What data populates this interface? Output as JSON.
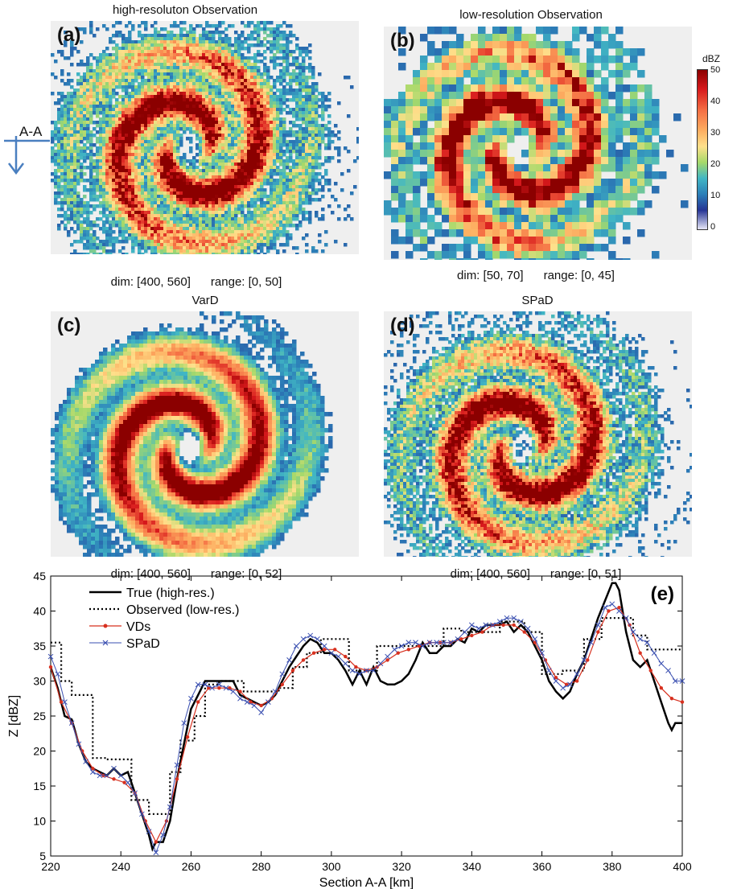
{
  "panels": [
    {
      "letter": "(a)",
      "title": "high-resoluton Observation",
      "dim": "dim: [400, 560]",
      "range": "range: [0, 50]"
    },
    {
      "letter": "(b)",
      "title": "low-resolution Observation",
      "dim": "dim: [50, 70]",
      "range": "range: [0, 45]"
    },
    {
      "letter": "(c)",
      "title": "VarD",
      "dim": "dim: [400, 560]",
      "range": "range: [0, 52]"
    },
    {
      "letter": "(d)",
      "title": "SPaD",
      "dim": "dim: [400, 560]",
      "range": "range: [0, 51]"
    }
  ],
  "section_marker": "A-A",
  "colorbar": {
    "unit": "dBZ",
    "ticks": [
      "50",
      "40",
      "30",
      "20",
      "10",
      "0"
    ]
  },
  "colors": {
    "true": "#000000",
    "observed": "#000000",
    "vds": "#d7301f",
    "spad": "#3a4fb0"
  },
  "chart_data": {
    "type": "line",
    "letter": "(e)",
    "xlabel": "Section A-A [km]",
    "ylabel": "Z [dBZ]",
    "xlim": [
      220,
      400
    ],
    "ylim": [
      5,
      45
    ],
    "xticks": [
      220,
      240,
      260,
      280,
      300,
      320,
      340,
      360,
      380,
      400
    ],
    "yticks": [
      5,
      10,
      15,
      20,
      25,
      30,
      35,
      40,
      45
    ],
    "legend_position": "top-left",
    "series": [
      {
        "name": "True (high-res.)",
        "style": "solid",
        "x": [
          220,
          222,
          224,
          226,
          228,
          230,
          232,
          234,
          236,
          238,
          240,
          242,
          244,
          246,
          248,
          249,
          250,
          252,
          254,
          256,
          258,
          260,
          262,
          264,
          266,
          268,
          270,
          272,
          274,
          276,
          278,
          280,
          282,
          284,
          286,
          288,
          290,
          292,
          294,
          296,
          298,
          300,
          302,
          304,
          306,
          308,
          310,
          312,
          314,
          316,
          318,
          320,
          322,
          324,
          326,
          328,
          330,
          332,
          334,
          336,
          338,
          340,
          342,
          344,
          346,
          348,
          350,
          352,
          354,
          356,
          358,
          360,
          362,
          364,
          366,
          368,
          370,
          372,
          374,
          376,
          378,
          380,
          381,
          382,
          384,
          386,
          388,
          390,
          392,
          394,
          396,
          397,
          398,
          400
        ],
        "y": [
          32,
          29,
          25,
          24.5,
          21,
          18.5,
          17.5,
          17,
          16.5,
          17.5,
          16.5,
          17,
          14,
          11,
          8,
          6,
          7,
          7,
          10,
          16,
          21,
          26,
          28,
          30,
          30,
          30,
          30,
          30,
          28,
          27.5,
          27,
          26.5,
          27,
          28,
          30,
          32,
          33.5,
          35,
          36,
          35.5,
          34,
          34,
          33,
          31.5,
          29.5,
          31.5,
          29.5,
          32,
          30,
          29.5,
          29.5,
          30,
          31,
          33,
          35.5,
          34,
          34,
          35,
          35,
          36,
          35.5,
          37.5,
          37,
          38,
          38,
          38,
          38.5,
          37,
          38,
          37,
          35,
          33,
          30,
          28.5,
          27.5,
          28.5,
          31,
          33,
          36,
          39,
          41.5,
          44,
          44,
          43,
          37,
          33,
          32,
          33,
          30,
          27,
          24,
          23,
          24,
          24
        ]
      },
      {
        "name": "Observed (low-res.)",
        "style": "dotted",
        "x": [
          220,
          223,
          223,
          226,
          226,
          232,
          232,
          236,
          236,
          243,
          243,
          248,
          248,
          254,
          254,
          257,
          257,
          261,
          261,
          264,
          264,
          268,
          268,
          275,
          275,
          285,
          285,
          289,
          289,
          293,
          293,
          297,
          297,
          305,
          305,
          313,
          313,
          325,
          325,
          332,
          332,
          337,
          337,
          348,
          348,
          355,
          355,
          360,
          360,
          366,
          366,
          372,
          372,
          377,
          377,
          386,
          386,
          390,
          390,
          400
        ],
        "y": [
          35.5,
          35.5,
          30,
          30,
          28,
          28,
          19,
          19,
          18.8,
          18.8,
          13,
          13,
          11,
          11,
          17,
          17,
          21.5,
          21.5,
          25,
          25,
          29.5,
          29.5,
          30,
          30,
          28.5,
          28.5,
          29,
          29,
          32,
          32,
          34,
          34,
          36,
          36,
          31.5,
          31.5,
          35,
          35,
          35,
          35,
          37.5,
          37.5,
          37,
          37,
          38.5,
          38.5,
          37,
          37,
          31,
          31,
          31.5,
          31.5,
          36,
          36,
          39,
          39,
          36.5,
          36.5,
          34.5,
          34.5
        ]
      },
      {
        "name": "VDs",
        "style": "dots",
        "x": [
          220,
          223,
          226,
          229,
          232,
          235,
          238,
          241,
          244,
          247,
          250,
          253,
          256,
          259,
          262,
          265,
          268,
          271,
          274,
          277,
          280,
          283,
          286,
          289,
          292,
          295,
          298,
          301,
          304,
          307,
          310,
          313,
          316,
          319,
          322,
          325,
          328,
          331,
          334,
          337,
          340,
          343,
          346,
          349,
          352,
          355,
          358,
          361,
          364,
          367,
          370,
          373,
          376,
          379,
          382,
          385,
          388,
          391,
          394,
          397,
          400
        ],
        "y": [
          32,
          27,
          24,
          20,
          17.5,
          16.5,
          16,
          15.5,
          14,
          10,
          7,
          10,
          16,
          22,
          27,
          29,
          29,
          29,
          28.5,
          27,
          26.5,
          27.5,
          29.5,
          31.5,
          33,
          34,
          34.5,
          34.5,
          33.5,
          32,
          31.5,
          32,
          33,
          34,
          34.5,
          35,
          35.5,
          35.5,
          35.5,
          36,
          36.5,
          37,
          38,
          38,
          38,
          37,
          35.5,
          33,
          30.5,
          29.5,
          30,
          33,
          37,
          40,
          40.5,
          38,
          34,
          31.5,
          29,
          27.5,
          27
        ]
      },
      {
        "name": "SPaD",
        "style": "cross",
        "x": [
          220,
          222,
          224,
          226,
          228,
          230,
          232,
          234,
          236,
          238,
          240,
          242,
          244,
          246,
          248,
          250,
          252,
          254,
          256,
          258,
          260,
          262,
          264,
          266,
          268,
          270,
          272,
          274,
          276,
          278,
          280,
          282,
          284,
          286,
          288,
          290,
          292,
          294,
          296,
          298,
          300,
          302,
          304,
          306,
          308,
          310,
          312,
          314,
          316,
          318,
          320,
          322,
          324,
          326,
          328,
          330,
          332,
          334,
          336,
          338,
          340,
          342,
          344,
          346,
          348,
          350,
          352,
          354,
          356,
          358,
          360,
          362,
          364,
          366,
          368,
          370,
          372,
          374,
          376,
          378,
          380,
          382,
          384,
          386,
          388,
          390,
          392,
          394,
          396,
          398,
          400
        ],
        "y": [
          33.5,
          31,
          27,
          24,
          21,
          18.5,
          17,
          16.5,
          16.5,
          17.5,
          16.5,
          15.5,
          14,
          11,
          8.5,
          5.5,
          8,
          12,
          18,
          24,
          27.5,
          29.5,
          29.5,
          29,
          29.5,
          29,
          28.5,
          27.5,
          27,
          26.5,
          25.5,
          27,
          28.5,
          31,
          33,
          35,
          36,
          36.5,
          36,
          35,
          34,
          33.5,
          32.5,
          31.5,
          31,
          31.5,
          31.5,
          32.5,
          33.5,
          34.5,
          35,
          35.5,
          35.5,
          35,
          35.5,
          35.5,
          35.5,
          35.5,
          36,
          37,
          38,
          37.5,
          38,
          38,
          38.5,
          39,
          39,
          38.5,
          37.5,
          36,
          34,
          31.5,
          30,
          29,
          29.5,
          31,
          33,
          35.5,
          38,
          40.5,
          41,
          40,
          39,
          37,
          36,
          35.5,
          34,
          32.5,
          31.5,
          30,
          30
        ]
      }
    ]
  }
}
